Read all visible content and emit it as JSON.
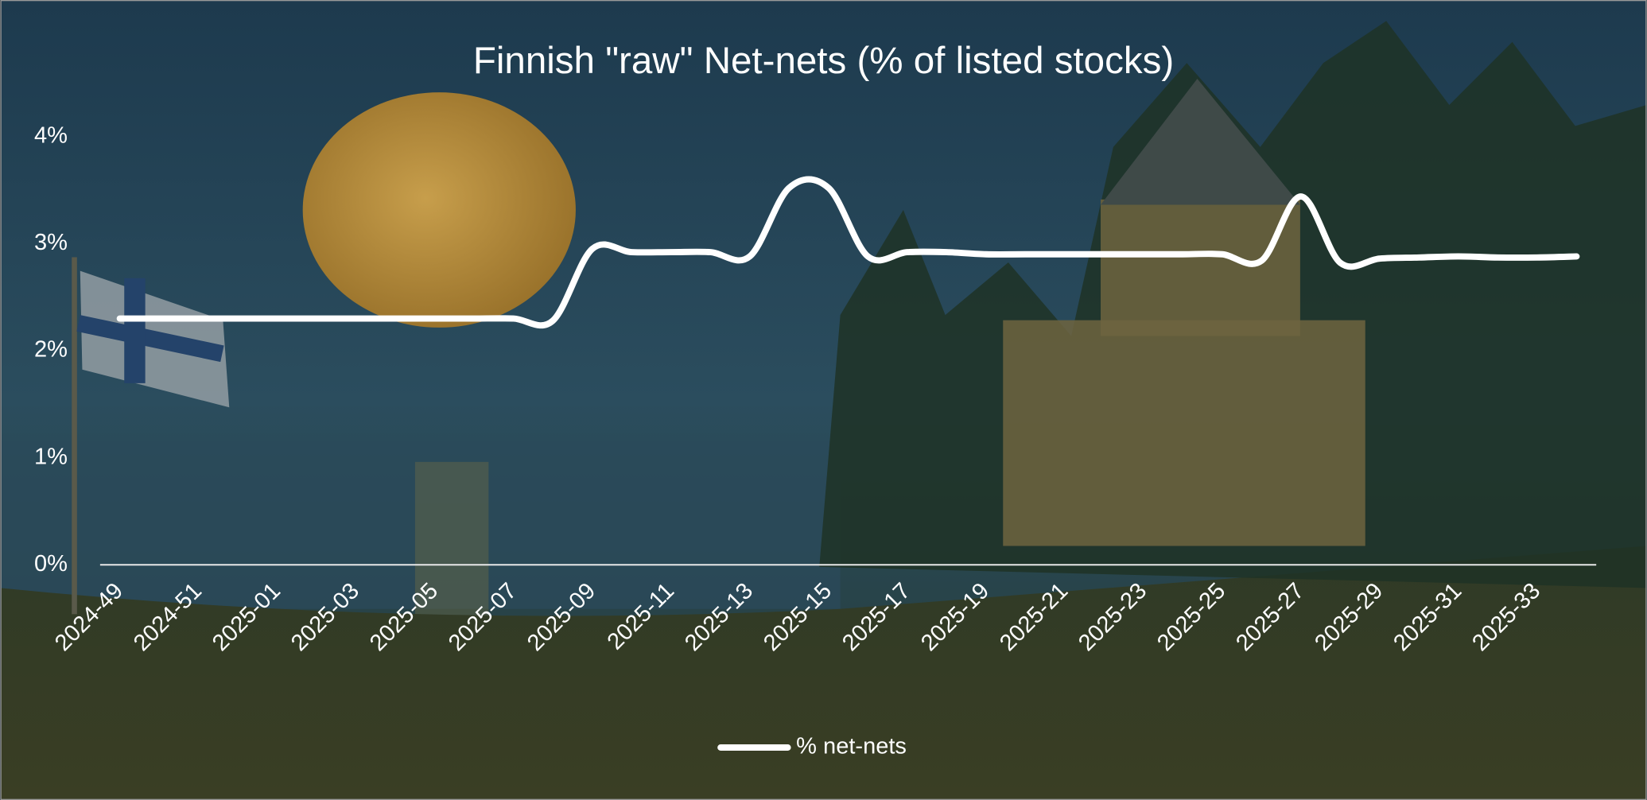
{
  "chart_data": {
    "type": "line",
    "title": "Finnish \"raw\" Net-nets (% of listed stocks)",
    "categories": [
      "2024-49",
      null,
      "2024-51",
      null,
      "2025-01",
      null,
      "2025-03",
      null,
      "2025-05",
      null,
      "2025-07",
      null,
      "2025-09",
      null,
      "2025-11",
      null,
      "2025-13",
      null,
      "2025-15",
      null,
      "2025-17",
      null,
      "2025-19",
      null,
      "2025-21",
      null,
      "2025-23",
      null,
      "2025-25",
      null,
      "2025-27",
      null,
      "2025-29",
      null,
      "2025-31",
      null,
      "2025-33",
      null
    ],
    "series": [
      {
        "name": "% net-nets",
        "color": "#ffffff",
        "values": [
          2.3,
          2.3,
          2.3,
          2.3,
          2.3,
          2.3,
          2.3,
          2.3,
          2.3,
          2.3,
          2.3,
          2.28,
          2.95,
          2.92,
          2.92,
          2.92,
          2.88,
          3.52,
          3.52,
          2.88,
          2.92,
          2.92,
          2.9,
          2.9,
          2.9,
          2.9,
          2.9,
          2.9,
          2.9,
          2.84,
          3.44,
          2.82,
          2.86,
          2.87,
          2.88,
          2.87,
          2.87,
          2.88
        ]
      }
    ],
    "ylim": [
      0,
      4
    ],
    "yticks": [
      {
        "value": 0,
        "label": "0%"
      },
      {
        "value": 1,
        "label": "1%"
      },
      {
        "value": 2,
        "label": "2%"
      },
      {
        "value": 3,
        "label": "3%"
      },
      {
        "value": 4,
        "label": "4%"
      }
    ],
    "legend": "bottom"
  }
}
